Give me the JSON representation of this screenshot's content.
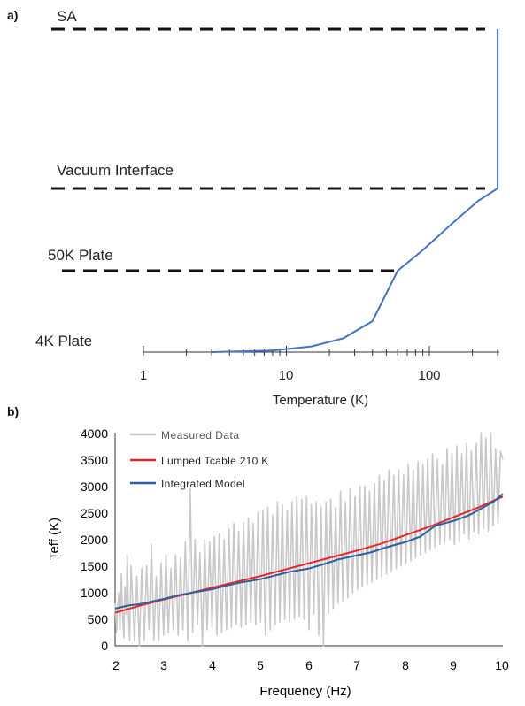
{
  "panel_a": {
    "panel_label": "a)",
    "stage_labels": {
      "sa": "SA",
      "vacuum": "Vacuum Interface",
      "plate50": "50K Plate",
      "plate4": "4K Plate"
    },
    "xlabel": "Temperature (K)",
    "tick_labels": [
      "1",
      "10",
      "100"
    ]
  },
  "panel_b": {
    "panel_label": "b)",
    "xlabel": "Frequency (Hz)",
    "ylabel": "Teff (K)",
    "x_tick_labels": [
      "2",
      "3",
      "4",
      "5",
      "6",
      "7",
      "8",
      "9",
      "10"
    ],
    "y_tick_labels": [
      "0",
      "500",
      "1000",
      "1500",
      "2000",
      "2500",
      "3000",
      "3500",
      "4000"
    ],
    "legend": {
      "measured": "Measured Data",
      "lumped": "Lumped Tcable 210 K",
      "integrated": "Integrated Model"
    }
  },
  "colors": {
    "measured": "#c8c8c8",
    "lumped": "#e8262a",
    "integrated": "#2e5f9e",
    "profile": "#4472c4",
    "dash": "#111111"
  },
  "chart_data": [
    {
      "type": "line",
      "xlabel": "Temperature (K)",
      "x_scale": "log",
      "xlim": [
        1,
        300
      ],
      "tick_labels": [
        "1",
        "10",
        "100"
      ],
      "stages": [
        "4K Plate",
        "50K Plate",
        "Vacuum Interface",
        "SA"
      ],
      "series": [
        {
          "points": [
            [
              3,
              0
            ],
            [
              8,
              0.02
            ],
            [
              15,
              0.07
            ],
            [
              25,
              0.17
            ],
            [
              40,
              0.38
            ],
            [
              60,
              1.0
            ],
            [
              90,
              1.25
            ],
            [
              150,
              1.6
            ],
            [
              220,
              1.85
            ],
            [
              300,
              2.0
            ],
            [
              300,
              3.0
            ]
          ]
        }
      ]
    },
    {
      "type": "line",
      "xlabel": "Frequency (Hz)",
      "ylabel": "Teff (K)",
      "xlim": [
        2,
        10
      ],
      "ylim": [
        0,
        4000
      ],
      "series": [
        {
          "name": "Measured Data",
          "color": "#c8c8c8",
          "note": "oscillating measurement; values estimated from gridlines",
          "points": [
            [
              2.0,
              800
            ],
            [
              2.03,
              250
            ],
            [
              2.05,
              700
            ],
            [
              2.08,
              1000
            ],
            [
              2.1,
              300
            ],
            [
              2.13,
              1350
            ],
            [
              2.15,
              700
            ],
            [
              2.18,
              150
            ],
            [
              2.2,
              1100
            ],
            [
              2.23,
              600
            ],
            [
              2.25,
              1700
            ],
            [
              2.28,
              500
            ],
            [
              2.3,
              100
            ],
            [
              2.33,
              1500
            ],
            [
              2.36,
              900
            ],
            [
              2.4,
              100
            ],
            [
              2.45,
              1300
            ],
            [
              2.5,
              0
            ],
            [
              2.55,
              1450
            ],
            [
              2.6,
              100
            ],
            [
              2.65,
              1500
            ],
            [
              2.7,
              300
            ],
            [
              2.75,
              1900
            ],
            [
              2.8,
              100
            ],
            [
              2.85,
              1300
            ],
            [
              2.9,
              100
            ],
            [
              2.95,
              1550
            ],
            [
              3.0,
              200
            ],
            [
              3.05,
              1700
            ],
            [
              3.1,
              250
            ],
            [
              3.15,
              1450
            ],
            [
              3.2,
              300
            ],
            [
              3.25,
              1700
            ],
            [
              3.3,
              200
            ],
            [
              3.35,
              1650
            ],
            [
              3.4,
              300
            ],
            [
              3.45,
              1950
            ],
            [
              3.5,
              100
            ],
            [
              3.55,
              2950
            ],
            [
              3.6,
              250
            ],
            [
              3.65,
              2000
            ],
            [
              3.7,
              400
            ],
            [
              3.75,
              1750
            ],
            [
              3.8,
              0
            ],
            [
              3.85,
              2000
            ],
            [
              3.9,
              300
            ],
            [
              3.95,
              1950
            ],
            [
              4.0,
              350
            ],
            [
              4.05,
              2050
            ],
            [
              4.1,
              200
            ],
            [
              4.15,
              2100
            ],
            [
              4.2,
              250
            ],
            [
              4.25,
              2000
            ],
            [
              4.3,
              300
            ],
            [
              4.35,
              2200
            ],
            [
              4.4,
              350
            ],
            [
              4.45,
              2300
            ],
            [
              4.5,
              400
            ],
            [
              4.55,
              2150
            ],
            [
              4.6,
              350
            ],
            [
              4.65,
              2300
            ],
            [
              4.7,
              400
            ],
            [
              4.75,
              2400
            ],
            [
              4.8,
              450
            ],
            [
              4.85,
              2300
            ],
            [
              4.9,
              400
            ],
            [
              4.95,
              2500
            ],
            [
              5.0,
              450
            ],
            [
              5.05,
              2550
            ],
            [
              5.1,
              200
            ],
            [
              5.15,
              2600
            ],
            [
              5.2,
              300
            ],
            [
              5.25,
              2450
            ],
            [
              5.3,
              400
            ],
            [
              5.35,
              2700
            ],
            [
              5.4,
              450
            ],
            [
              5.45,
              2650
            ],
            [
              5.5,
              500
            ],
            [
              5.55,
              2550
            ],
            [
              5.6,
              450
            ],
            [
              5.65,
              2700
            ],
            [
              5.7,
              500
            ],
            [
              5.75,
              2800
            ],
            [
              5.8,
              550
            ],
            [
              5.85,
              2750
            ],
            [
              5.9,
              500
            ],
            [
              5.95,
              2800
            ],
            [
              6.0,
              300
            ],
            [
              6.05,
              2650
            ],
            [
              6.1,
              600
            ],
            [
              6.15,
              2700
            ],
            [
              6.2,
              200
            ],
            [
              6.25,
              2600
            ],
            [
              6.3,
              0
            ],
            [
              6.35,
              2700
            ],
            [
              6.4,
              600
            ],
            [
              6.45,
              2750
            ],
            [
              6.5,
              700
            ],
            [
              6.55,
              2600
            ],
            [
              6.6,
              800
            ],
            [
              6.65,
              2900
            ],
            [
              6.7,
              850
            ],
            [
              6.75,
              2700
            ],
            [
              6.8,
              900
            ],
            [
              6.85,
              2950
            ],
            [
              6.9,
              1000
            ],
            [
              6.95,
              2800
            ],
            [
              7.0,
              1050
            ],
            [
              7.05,
              3000
            ],
            [
              7.1,
              1100
            ],
            [
              7.15,
              3000
            ],
            [
              7.2,
              1150
            ],
            [
              7.25,
              2900
            ],
            [
              7.3,
              1200
            ],
            [
              7.35,
              3050
            ],
            [
              7.4,
              1250
            ],
            [
              7.45,
              3200
            ],
            [
              7.5,
              1300
            ],
            [
              7.55,
              3100
            ],
            [
              7.6,
              1350
            ],
            [
              7.65,
              3300
            ],
            [
              7.7,
              1400
            ],
            [
              7.75,
              3200
            ],
            [
              7.8,
              1450
            ],
            [
              7.85,
              3300
            ],
            [
              7.9,
              1500
            ],
            [
              7.95,
              3200
            ],
            [
              8.0,
              1550
            ],
            [
              8.05,
              3400
            ],
            [
              8.1,
              1600
            ],
            [
              8.15,
              3300
            ],
            [
              8.2,
              1650
            ],
            [
              8.25,
              3450
            ],
            [
              8.3,
              1700
            ],
            [
              8.35,
              3400
            ],
            [
              8.4,
              1750
            ],
            [
              8.45,
              3500
            ],
            [
              8.5,
              1800
            ],
            [
              8.55,
              3600
            ],
            [
              8.6,
              1850
            ],
            [
              8.65,
              3500
            ],
            [
              8.7,
              1900
            ],
            [
              8.75,
              3400
            ],
            [
              8.8,
              1950
            ],
            [
              8.85,
              3700
            ],
            [
              8.9,
              2000
            ],
            [
              8.95,
              3600
            ],
            [
              9.0,
              1900
            ],
            [
              9.05,
              3750
            ],
            [
              9.1,
              1950
            ],
            [
              9.15,
              3600
            ],
            [
              9.2,
              2100
            ],
            [
              9.25,
              3800
            ],
            [
              9.3,
              2000
            ],
            [
              9.35,
              3650
            ],
            [
              9.4,
              2150
            ],
            [
              9.45,
              3800
            ],
            [
              9.5,
              2100
            ],
            [
              9.55,
              4000
            ],
            [
              9.6,
              2200
            ],
            [
              9.65,
              3900
            ],
            [
              9.7,
              2150
            ],
            [
              9.75,
              4000
            ],
            [
              9.8,
              2250
            ],
            [
              9.85,
              3700
            ],
            [
              9.9,
              2300
            ],
            [
              9.95,
              3650
            ],
            [
              10.0,
              3500
            ]
          ]
        },
        {
          "name": "Lumped Tcable 210 K",
          "color": "#e8262a",
          "points": [
            [
              2.0,
              620
            ],
            [
              2.5,
              750
            ],
            [
              3.0,
              870
            ],
            [
              3.5,
              980
            ],
            [
              4.0,
              1090
            ],
            [
              4.5,
              1200
            ],
            [
              5.0,
              1310
            ],
            [
              5.5,
              1430
            ],
            [
              6.0,
              1550
            ],
            [
              6.5,
              1670
            ],
            [
              7.0,
              1790
            ],
            [
              7.5,
              1920
            ],
            [
              8.0,
              2080
            ],
            [
              8.5,
              2240
            ],
            [
              9.0,
              2420
            ],
            [
              9.5,
              2600
            ],
            [
              10.0,
              2800
            ]
          ]
        },
        {
          "name": "Integrated Model",
          "color": "#2e5f9e",
          "points": [
            [
              2.0,
              700
            ],
            [
              2.1,
              720
            ],
            [
              2.2,
              740
            ],
            [
              2.3,
              760
            ],
            [
              2.5,
              780
            ],
            [
              2.7,
              820
            ],
            [
              3.0,
              880
            ],
            [
              3.3,
              950
            ],
            [
              3.6,
              1000
            ],
            [
              4.0,
              1060
            ],
            [
              4.3,
              1130
            ],
            [
              4.6,
              1190
            ],
            [
              5.0,
              1250
            ],
            [
              5.3,
              1320
            ],
            [
              5.6,
              1390
            ],
            [
              6.0,
              1450
            ],
            [
              6.3,
              1530
            ],
            [
              6.6,
              1620
            ],
            [
              7.0,
              1700
            ],
            [
              7.3,
              1760
            ],
            [
              7.6,
              1850
            ],
            [
              8.0,
              1950
            ],
            [
              8.3,
              2050
            ],
            [
              8.6,
              2250
            ],
            [
              9.0,
              2350
            ],
            [
              9.3,
              2450
            ],
            [
              9.6,
              2600
            ],
            [
              9.8,
              2700
            ],
            [
              10.0,
              2850
            ]
          ]
        }
      ]
    }
  ]
}
